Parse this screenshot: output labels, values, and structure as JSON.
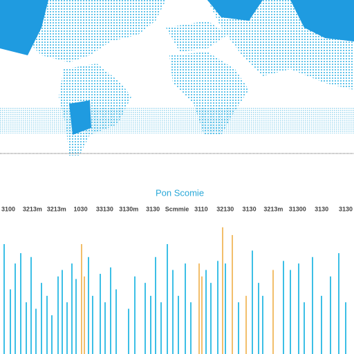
{
  "chart_data": {
    "type": "bar",
    "title": "Pon Scomie",
    "x_labels": [
      "3100",
      "3213m",
      "3213m",
      "1030",
      "33130",
      "3130m",
      "3130",
      "Scmmie",
      "3110",
      "32130",
      "3130",
      "3213m",
      "31300",
      "3130",
      "3130"
    ],
    "xlim": [
      0,
      512
    ],
    "ylim": [
      0,
      100
    ],
    "series": [
      {
        "name": null,
        "color": "#3cbfe6",
        "x": [
          6,
          15,
          22,
          30,
          38,
          45,
          52,
          60,
          68,
          75,
          84,
          90,
          97,
          104,
          110,
          128,
          134,
          145,
          152,
          160,
          168,
          186,
          195,
          210,
          218,
          225,
          233,
          242,
          250,
          258,
          268,
          276,
          298,
          305,
          315,
          326,
          345,
          365,
          374,
          380,
          410,
          420,
          432,
          440,
          452,
          465,
          478,
          490,
          500
        ],
        "values": [
          85,
          50,
          70,
          78,
          40,
          75,
          35,
          55,
          45,
          30,
          60,
          65,
          40,
          70,
          58,
          75,
          45,
          62,
          40,
          67,
          50,
          35,
          60,
          55,
          45,
          75,
          40,
          85,
          65,
          45,
          70,
          40,
          65,
          55,
          72,
          70,
          40,
          80,
          55,
          45,
          72,
          65,
          70,
          40,
          75,
          45,
          60,
          78,
          40
        ]
      },
      {
        "name": null,
        "color": "#f2be6a",
        "x": [
          118,
          122,
          288,
          292,
          322,
          336,
          356,
          395
        ],
        "values": [
          85,
          60,
          70,
          60,
          98,
          92,
          45,
          65
        ]
      }
    ]
  }
}
